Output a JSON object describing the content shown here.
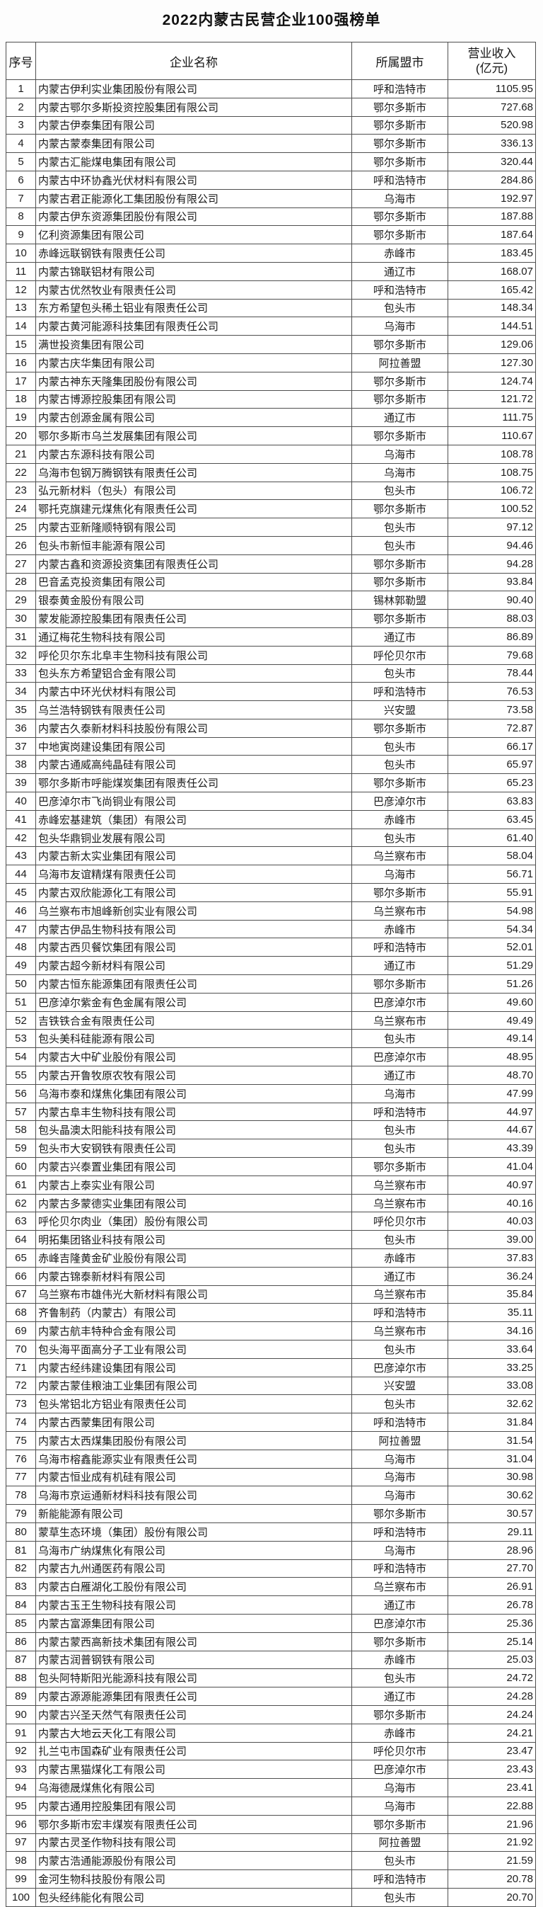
{
  "page": {
    "title": "2022内蒙古民营企业100强榜单"
  },
  "table": {
    "headers": {
      "rank": "序号",
      "company": "企业名称",
      "city": "所属盟市",
      "revenue_line1": "营业收入",
      "revenue_line2": "(亿元)"
    },
    "rows": [
      [
        "1",
        "内蒙古伊利实业集团股份有限公司",
        "呼和浩特市",
        "1105.95"
      ],
      [
        "2",
        "内蒙古鄂尔多斯投资控股集团有限公司",
        "鄂尔多斯市",
        "727.68"
      ],
      [
        "3",
        "内蒙古伊泰集团有限公司",
        "鄂尔多斯市",
        "520.98"
      ],
      [
        "4",
        "内蒙古蒙泰集团有限公司",
        "鄂尔多斯市",
        "336.13"
      ],
      [
        "5",
        "内蒙古汇能煤电集团有限公司",
        "鄂尔多斯市",
        "320.44"
      ],
      [
        "6",
        "内蒙古中环协鑫光伏材料有限公司",
        "呼和浩特市",
        "284.86"
      ],
      [
        "7",
        "内蒙古君正能源化工集团股份有限公司",
        "乌海市",
        "192.97"
      ],
      [
        "8",
        "内蒙古伊东资源集团股份有限公司",
        "鄂尔多斯市",
        "187.88"
      ],
      [
        "9",
        "亿利资源集团有限公司",
        "鄂尔多斯市",
        "187.64"
      ],
      [
        "10",
        "赤峰远联钢铁有限责任公司",
        "赤峰市",
        "183.45"
      ],
      [
        "11",
        "内蒙古锦联铝材有限公司",
        "通辽市",
        "168.07"
      ],
      [
        "12",
        "内蒙古优然牧业有限责任公司",
        "呼和浩特市",
        "165.42"
      ],
      [
        "13",
        "东方希望包头稀土铝业有限责任公司",
        "包头市",
        "148.34"
      ],
      [
        "14",
        "内蒙古黄河能源科技集团有限责任公司",
        "乌海市",
        "144.51"
      ],
      [
        "15",
        "满世投资集团有限公司",
        "鄂尔多斯市",
        "129.06"
      ],
      [
        "16",
        "内蒙古庆华集团有限公司",
        "阿拉善盟",
        "127.30"
      ],
      [
        "17",
        "内蒙古神东天隆集团股份有限公司",
        "鄂尔多斯市",
        "124.74"
      ],
      [
        "18",
        "内蒙古博源控股集团有限公司",
        "鄂尔多斯市",
        "121.72"
      ],
      [
        "19",
        "内蒙古创源金属有限公司",
        "通辽市",
        "111.75"
      ],
      [
        "20",
        "鄂尔多斯市乌兰发展集团有限公司",
        "鄂尔多斯市",
        "110.67"
      ],
      [
        "21",
        "内蒙古东源科技有限公司",
        "乌海市",
        "108.78"
      ],
      [
        "22",
        "乌海市包钢万腾钢铁有限责任公司",
        "乌海市",
        "108.75"
      ],
      [
        "23",
        "弘元新材料（包头）有限公司",
        "包头市",
        "106.72"
      ],
      [
        "24",
        "鄂托克旗建元煤焦化有限责任公司",
        "鄂尔多斯市",
        "100.52"
      ],
      [
        "25",
        "内蒙古亚新隆顺特钢有限公司",
        "包头市",
        "97.12"
      ],
      [
        "26",
        "包头市新恒丰能源有限公司",
        "包头市",
        "94.46"
      ],
      [
        "27",
        "内蒙古鑫和资源投资集团有限责任公司",
        "鄂尔多斯市",
        "94.28"
      ],
      [
        "28",
        "巴音孟克投资集团有限公司",
        "鄂尔多斯市",
        "93.84"
      ],
      [
        "29",
        "银泰黄金股份有限公司",
        "锡林郭勒盟",
        "90.40"
      ],
      [
        "30",
        "蒙发能源控股集团有限责任公司",
        "鄂尔多斯市",
        "88.03"
      ],
      [
        "31",
        "通辽梅花生物科技有限公司",
        "通辽市",
        "86.89"
      ],
      [
        "32",
        "呼伦贝尔东北阜丰生物科技有限公司",
        "呼伦贝尔市",
        "79.68"
      ],
      [
        "33",
        "包头东方希望铝合金有限公司",
        "包头市",
        "78.44"
      ],
      [
        "34",
        "内蒙古中环光伏材料有限公司",
        "呼和浩特市",
        "76.53"
      ],
      [
        "35",
        "乌兰浩特钢铁有限责任公司",
        "兴安盟",
        "73.58"
      ],
      [
        "36",
        "内蒙古久泰新材料科技股份有限公司",
        "鄂尔多斯市",
        "72.87"
      ],
      [
        "37",
        "中地寅岗建设集团有限公司",
        "包头市",
        "66.17"
      ],
      [
        "38",
        "内蒙古通威高纯晶硅有限公司",
        "包头市",
        "65.97"
      ],
      [
        "39",
        "鄂尔多斯市呼能煤炭集团有限责任公司",
        "鄂尔多斯市",
        "65.23"
      ],
      [
        "40",
        "巴彦淖尔市飞尚铜业有限公司",
        "巴彦淖尔市",
        "63.83"
      ],
      [
        "41",
        "赤峰宏基建筑（集团）有限公司",
        "赤峰市",
        "63.45"
      ],
      [
        "42",
        "包头华鼎铜业发展有限公司",
        "包头市",
        "61.40"
      ],
      [
        "43",
        "内蒙古新太实业集团有限公司",
        "乌兰察布市",
        "58.04"
      ],
      [
        "44",
        "乌海市友谊精煤有限责任公司",
        "乌海市",
        "56.71"
      ],
      [
        "45",
        "内蒙古双欣能源化工有限公司",
        "鄂尔多斯市",
        "55.91"
      ],
      [
        "46",
        "乌兰察布市旭峰新创实业有限公司",
        "乌兰察布市",
        "54.98"
      ],
      [
        "47",
        "内蒙古伊品生物科技有限公司",
        "赤峰市",
        "54.34"
      ],
      [
        "48",
        "内蒙古西贝餐饮集团有限公司",
        "呼和浩特市",
        "52.01"
      ],
      [
        "49",
        "内蒙古超今新材料有限公司",
        "通辽市",
        "51.29"
      ],
      [
        "50",
        "内蒙古恒东能源集团有限责任公司",
        "鄂尔多斯市",
        "51.26"
      ],
      [
        "51",
        "巴彦淖尔紫金有色金属有限公司",
        "巴彦淖尔市",
        "49.60"
      ],
      [
        "52",
        "吉铁铁合金有限责任公司",
        "乌兰察布市",
        "49.49"
      ],
      [
        "53",
        "包头美科硅能源有限公司",
        "包头市",
        "49.14"
      ],
      [
        "54",
        "内蒙古大中矿业股份有限公司",
        "巴彦淖尔市",
        "48.95"
      ],
      [
        "55",
        "内蒙古开鲁牧原农牧有限公司",
        "通辽市",
        "48.70"
      ],
      [
        "56",
        "乌海市泰和煤焦化集团有限公司",
        "乌海市",
        "47.99"
      ],
      [
        "57",
        "内蒙古阜丰生物科技有限公司",
        "呼和浩特市",
        "44.97"
      ],
      [
        "58",
        "包头晶澳太阳能科技有限公司",
        "包头市",
        "44.67"
      ],
      [
        "59",
        "包头市大安钢铁有限责任公司",
        "包头市",
        "43.39"
      ],
      [
        "60",
        "内蒙古兴泰置业集团有限公司",
        "鄂尔多斯市",
        "41.04"
      ],
      [
        "61",
        "内蒙古上泰实业有限公司",
        "乌兰察布市",
        "40.97"
      ],
      [
        "62",
        "内蒙古多蒙德实业集团有限公司",
        "乌兰察布市",
        "40.16"
      ],
      [
        "63",
        "呼伦贝尔肉业（集团）股份有限公司",
        "呼伦贝尔市",
        "40.03"
      ],
      [
        "64",
        "明拓集团铬业科技有限公司",
        "包头市",
        "39.00"
      ],
      [
        "65",
        "赤峰吉隆黄金矿业股份有限公司",
        "赤峰市",
        "37.83"
      ],
      [
        "66",
        "内蒙古锦泰新材料有限公司",
        "通辽市",
        "36.24"
      ],
      [
        "67",
        "乌兰察布市雄伟光大新材料有限公司",
        "乌兰察布市",
        "35.84"
      ],
      [
        "68",
        "齐鲁制药（内蒙古）有限公司",
        "呼和浩特市",
        "35.11"
      ],
      [
        "69",
        "内蒙古航丰特种合金有限公司",
        "乌兰察布市",
        "34.16"
      ],
      [
        "70",
        "包头海平面高分子工业有限公司",
        "包头市",
        "33.64"
      ],
      [
        "71",
        "内蒙古经纬建设集团有限公司",
        "巴彦淖尔市",
        "33.25"
      ],
      [
        "72",
        "内蒙古蒙佳粮油工业集团有限公司",
        "兴安盟",
        "33.08"
      ],
      [
        "73",
        "包头常铝北方铝业有限责任公司",
        "包头市",
        "32.62"
      ],
      [
        "74",
        "内蒙古西蒙集团有限公司",
        "呼和浩特市",
        "31.84"
      ],
      [
        "75",
        "内蒙古太西煤集团股份有限公司",
        "阿拉善盟",
        "31.54"
      ],
      [
        "76",
        "乌海市榕鑫能源实业有限责任公司",
        "乌海市",
        "31.04"
      ],
      [
        "77",
        "内蒙古恒业成有机硅有限公司",
        "乌海市",
        "30.98"
      ],
      [
        "78",
        "乌海市京运通新材料科技有限公司",
        "乌海市",
        "30.62"
      ],
      [
        "79",
        "新能能源有限公司",
        "鄂尔多斯市",
        "30.57"
      ],
      [
        "80",
        "蒙草生态环境（集团）股份有限公司",
        "呼和浩特市",
        "29.11"
      ],
      [
        "81",
        "乌海市广纳煤焦化有限公司",
        "乌海市",
        "28.96"
      ],
      [
        "82",
        "内蒙古九州通医药有限公司",
        "呼和浩特市",
        "27.70"
      ],
      [
        "83",
        "内蒙古白雁湖化工股份有限公司",
        "乌兰察布市",
        "26.91"
      ],
      [
        "84",
        "内蒙古玉王生物科技有限公司",
        "通辽市",
        "26.78"
      ],
      [
        "85",
        "内蒙古富源集团有限公司",
        "巴彦淖尔市",
        "25.36"
      ],
      [
        "86",
        "内蒙古蒙西高新技术集团有限公司",
        "鄂尔多斯市",
        "25.14"
      ],
      [
        "87",
        "内蒙古润普钢铁有限公司",
        "赤峰市",
        "25.03"
      ],
      [
        "88",
        "包头阿特斯阳光能源科技有限公司",
        "包头市",
        "24.72"
      ],
      [
        "89",
        "内蒙古源源能源集团有限责任公司",
        "通辽市",
        "24.28"
      ],
      [
        "90",
        "内蒙古兴圣天然气有限责任公司",
        "鄂尔多斯市",
        "24.24"
      ],
      [
        "91",
        "内蒙古大地云天化工有限公司",
        "赤峰市",
        "24.21"
      ],
      [
        "92",
        "扎兰屯市国森矿业有限责任公司",
        "呼伦贝尔市",
        "23.47"
      ],
      [
        "93",
        "内蒙古黑猫煤化工有限公司",
        "巴彦淖尔市",
        "23.43"
      ],
      [
        "94",
        "乌海德晟煤焦化有限公司",
        "乌海市",
        "23.41"
      ],
      [
        "95",
        "内蒙古通用控股集团有限公司",
        "乌海市",
        "22.88"
      ],
      [
        "96",
        "鄂尔多斯市宏丰煤炭有限责任公司",
        "鄂尔多斯市",
        "21.96"
      ],
      [
        "97",
        "内蒙古灵圣作物科技有限公司",
        "阿拉善盟",
        "21.92"
      ],
      [
        "98",
        "内蒙古浩通能源股份有限公司",
        "包头市",
        "21.59"
      ],
      [
        "99",
        "金河生物科技股份有限公司",
        "呼和浩特市",
        "20.78"
      ],
      [
        "100",
        "包头经纬能化有限公司",
        "包头市",
        "20.70"
      ]
    ]
  }
}
